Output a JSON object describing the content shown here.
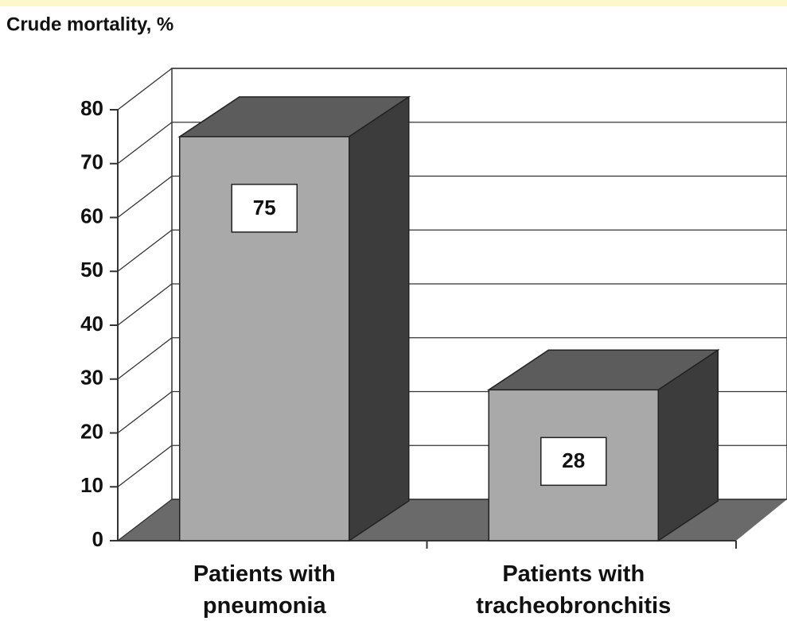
{
  "chart_data": {
    "type": "bar3d",
    "y_axis_label": "Crude mortality, %",
    "categories": [
      "Patients with\npneumonia",
      "Patients with\ntracheobronchitis"
    ],
    "values": [
      75,
      28
    ],
    "colors": {
      "front": "#a9a9a9",
      "top": "#5c5c5c",
      "side": "#3c3c3c",
      "floor": "#6a6a6a"
    },
    "ylim": [
      0,
      80
    ],
    "yticks": [
      0,
      10,
      20,
      30,
      40,
      50,
      60,
      70,
      80
    ],
    "grid": true
  }
}
